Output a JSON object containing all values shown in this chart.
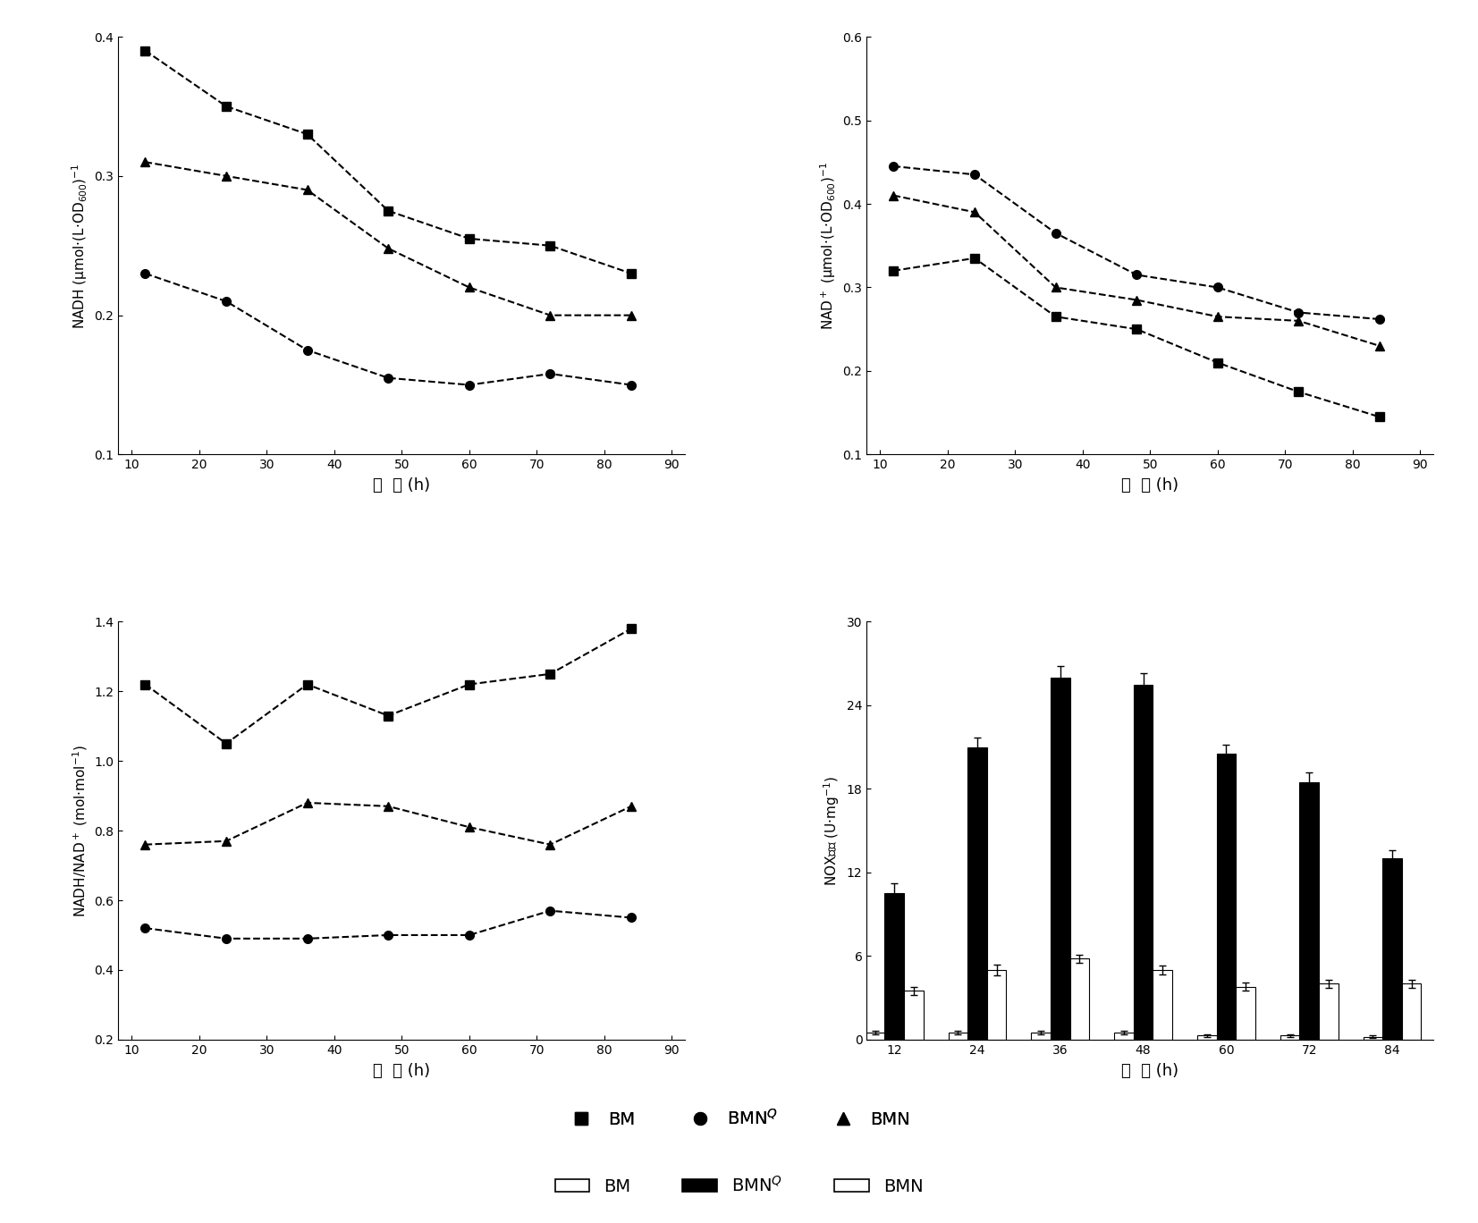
{
  "time": [
    12,
    24,
    36,
    48,
    60,
    72,
    84
  ],
  "nadh_BM": [
    0.39,
    0.35,
    0.33,
    0.275,
    0.255,
    0.25,
    0.23
  ],
  "nadh_BMNQ": [
    0.23,
    0.21,
    0.175,
    0.155,
    0.15,
    0.158,
    0.15
  ],
  "nadh_BMN": [
    0.31,
    0.3,
    0.29,
    0.248,
    0.22,
    0.2,
    0.2
  ],
  "nad_BM": [
    0.32,
    0.335,
    0.265,
    0.25,
    0.21,
    0.175,
    0.145
  ],
  "nad_BMNQ": [
    0.445,
    0.435,
    0.365,
    0.315,
    0.3,
    0.27,
    0.262
  ],
  "nad_BMN": [
    0.41,
    0.39,
    0.3,
    0.285,
    0.265,
    0.26,
    0.23
  ],
  "ratio_BM": [
    1.22,
    1.05,
    1.22,
    1.13,
    1.22,
    1.25,
    1.38
  ],
  "ratio_BMNQ": [
    0.52,
    0.49,
    0.49,
    0.5,
    0.5,
    0.57,
    0.55
  ],
  "ratio_BMN": [
    0.76,
    0.77,
    0.88,
    0.87,
    0.81,
    0.76,
    0.87
  ],
  "nox_time": [
    12,
    24,
    36,
    48,
    60,
    72,
    84
  ],
  "nox_BM": [
    0.5,
    0.5,
    0.5,
    0.5,
    0.3,
    0.3,
    0.2
  ],
  "nox_BMNQ": [
    10.5,
    21.0,
    26.0,
    25.5,
    20.5,
    18.5,
    13.0
  ],
  "nox_BMN": [
    3.5,
    5.0,
    5.8,
    5.0,
    3.8,
    4.0,
    4.0
  ],
  "nox_BM_err": [
    0.15,
    0.15,
    0.15,
    0.15,
    0.1,
    0.1,
    0.1
  ],
  "nox_BMNQ_err": [
    0.7,
    0.7,
    0.8,
    0.8,
    0.7,
    0.7,
    0.6
  ],
  "nox_BMN_err": [
    0.3,
    0.4,
    0.3,
    0.3,
    0.3,
    0.3,
    0.3
  ],
  "background": "#ffffff"
}
